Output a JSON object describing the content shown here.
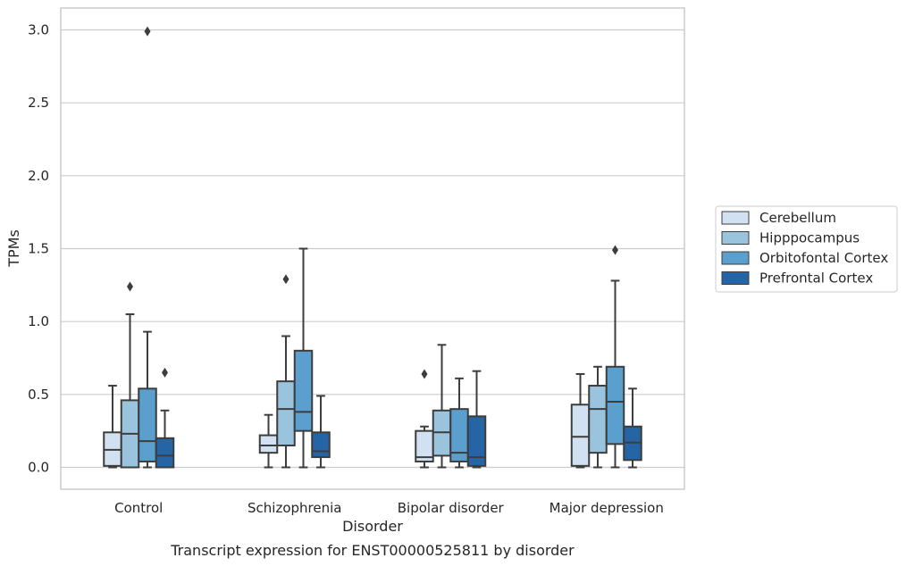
{
  "chart_data": {
    "type": "box",
    "title": "",
    "caption": "Transcript expression for ENST00000525811 by disorder",
    "xlabel": "Disorder",
    "ylabel": "TPMs",
    "ylim": [
      -0.15,
      3.15
    ],
    "yticks": [
      0.0,
      0.5,
      1.0,
      1.5,
      2.0,
      2.5,
      3.0
    ],
    "ytick_labels": [
      "0.0",
      "0.5",
      "1.0",
      "1.5",
      "2.0",
      "2.5",
      "3.0"
    ],
    "grid": "horizontal",
    "legend_position": "right",
    "categories": [
      "Control",
      "Schizophrenia",
      "Bipolar disorder",
      "Major depression"
    ],
    "series": [
      {
        "name": "Cerebellum",
        "color": "#d1e1f1",
        "boxes": [
          {
            "whislo": 0.0,
            "q1": 0.01,
            "med": 0.12,
            "q3": 0.24,
            "whishi": 0.56,
            "fliers": []
          },
          {
            "whislo": 0.0,
            "q1": 0.1,
            "med": 0.15,
            "q3": 0.22,
            "whishi": 0.36,
            "fliers": []
          },
          {
            "whislo": 0.0,
            "q1": 0.04,
            "med": 0.07,
            "q3": 0.25,
            "whishi": 0.28,
            "fliers": [
              0.64
            ]
          },
          {
            "whislo": 0.0,
            "q1": 0.01,
            "med": 0.21,
            "q3": 0.43,
            "whishi": 0.64,
            "fliers": []
          }
        ]
      },
      {
        "name": "Hipppocampus",
        "color": "#9ac4de",
        "boxes": [
          {
            "whislo": 0.0,
            "q1": 0.0,
            "med": 0.23,
            "q3": 0.46,
            "whishi": 1.05,
            "fliers": [
              1.24
            ]
          },
          {
            "whislo": 0.0,
            "q1": 0.15,
            "med": 0.4,
            "q3": 0.59,
            "whishi": 0.9,
            "fliers": [
              1.29
            ]
          },
          {
            "whislo": 0.0,
            "q1": 0.08,
            "med": 0.24,
            "q3": 0.39,
            "whishi": 0.84,
            "fliers": []
          },
          {
            "whislo": 0.0,
            "q1": 0.1,
            "med": 0.4,
            "q3": 0.56,
            "whishi": 0.69,
            "fliers": []
          }
        ]
      },
      {
        "name": "Orbitofontal Cortex",
        "color": "#5a9fcd",
        "boxes": [
          {
            "whislo": 0.0,
            "q1": 0.04,
            "med": 0.18,
            "q3": 0.54,
            "whishi": 0.93,
            "fliers": [
              2.99
            ]
          },
          {
            "whislo": 0.0,
            "q1": 0.25,
            "med": 0.38,
            "q3": 0.8,
            "whishi": 1.5,
            "fliers": []
          },
          {
            "whislo": 0.0,
            "q1": 0.04,
            "med": 0.1,
            "q3": 0.4,
            "whishi": 0.61,
            "fliers": []
          },
          {
            "whislo": 0.0,
            "q1": 0.16,
            "med": 0.45,
            "q3": 0.69,
            "whishi": 1.28,
            "fliers": [
              1.49
            ]
          }
        ]
      },
      {
        "name": "Prefrontal Cortex",
        "color": "#2565a6",
        "boxes": [
          {
            "whislo": 0.0,
            "q1": 0.0,
            "med": 0.08,
            "q3": 0.2,
            "whishi": 0.39,
            "fliers": [
              0.65
            ]
          },
          {
            "whislo": 0.0,
            "q1": 0.07,
            "med": 0.11,
            "q3": 0.24,
            "whishi": 0.49,
            "fliers": []
          },
          {
            "whislo": 0.0,
            "q1": 0.01,
            "med": 0.07,
            "q3": 0.35,
            "whishi": 0.66,
            "fliers": []
          },
          {
            "whislo": 0.0,
            "q1": 0.05,
            "med": 0.17,
            "q3": 0.28,
            "whishi": 0.54,
            "fliers": []
          }
        ]
      }
    ]
  },
  "style": {
    "grid_color": "#cccccc",
    "frame_color": "#cccccc",
    "line_color": "#3d3d3d"
  }
}
